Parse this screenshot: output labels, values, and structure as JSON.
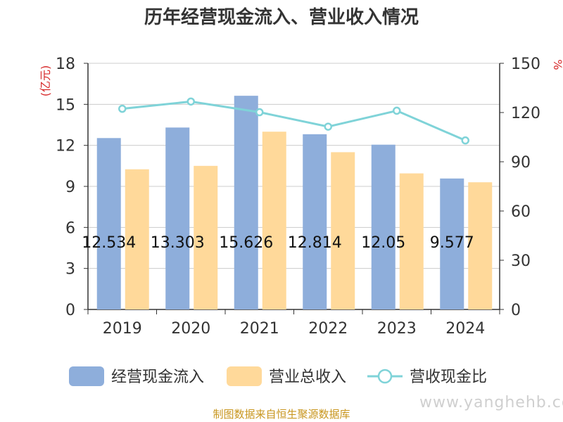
{
  "chart_data": {
    "type": "bar",
    "title": "历年经营现金流入、营业收入情况",
    "categories": [
      "2019",
      "2020",
      "2021",
      "2022",
      "2023",
      "2024"
    ],
    "y_left_label": "(亿元)",
    "y_right_label": "%",
    "y_left_lim": [
      0,
      18
    ],
    "y_left_ticks": [
      0,
      3,
      6,
      9,
      12,
      15,
      18
    ],
    "y_right_lim": [
      0,
      150
    ],
    "y_right_ticks": [
      0,
      30,
      60,
      90,
      120,
      150
    ],
    "grid": true,
    "legend_position": "bottom",
    "series": [
      {
        "name": "经营现金流入",
        "type": "bar",
        "axis": "left",
        "color": "#8eaedb",
        "values": [
          12.534,
          13.303,
          15.626,
          12.814,
          12.05,
          9.577
        ],
        "data_labels": [
          "12.534",
          "13.303",
          "15.626",
          "12.814",
          "12.05",
          "9.577"
        ]
      },
      {
        "name": "营业总收入",
        "type": "bar",
        "axis": "left",
        "color": "#ffd99a",
        "values": [
          10.25,
          10.5,
          13.0,
          11.5,
          9.95,
          9.3
        ]
      },
      {
        "name": "营收现金比",
        "type": "line",
        "axis": "right",
        "color": "#7fd3d8",
        "values": [
          122.3,
          126.7,
          120.2,
          111.4,
          121.1,
          103.0
        ]
      }
    ]
  },
  "source_note": "制图数据来自恒生聚源数据库",
  "watermark": "www.yanghehb.com"
}
